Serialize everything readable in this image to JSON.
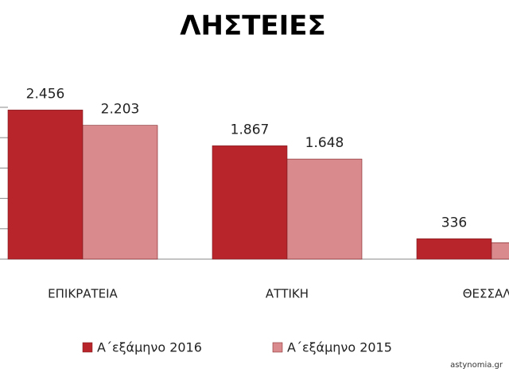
{
  "chart_data": {
    "type": "bar",
    "title": "ΛΗΣΤΕΙΕΣ",
    "categories": [
      "ΕΠΙΚΡΑΤΕΙΑ",
      "ΑΤΤΙΚΗ",
      "ΘΕΣΣΑΛΟ"
    ],
    "series": [
      {
        "name": "Α΄εξάμηνο 2016",
        "color": "#b8262c",
        "values": [
          2456,
          1867,
          336
        ],
        "value_labels": [
          "2.456",
          "1.867",
          "336"
        ]
      },
      {
        "name": "Α΄εξάμηνο 2015",
        "color": "#d98a8c",
        "values": [
          2203,
          1648,
          270
        ],
        "value_labels": [
          "2.203",
          "1.648",
          null
        ]
      }
    ],
    "ylim": [
      0,
      2500
    ],
    "yticks": [
      0,
      500,
      1000,
      1500,
      2000,
      2500
    ],
    "legend": "bottom",
    "source": "astynomia.gr"
  }
}
